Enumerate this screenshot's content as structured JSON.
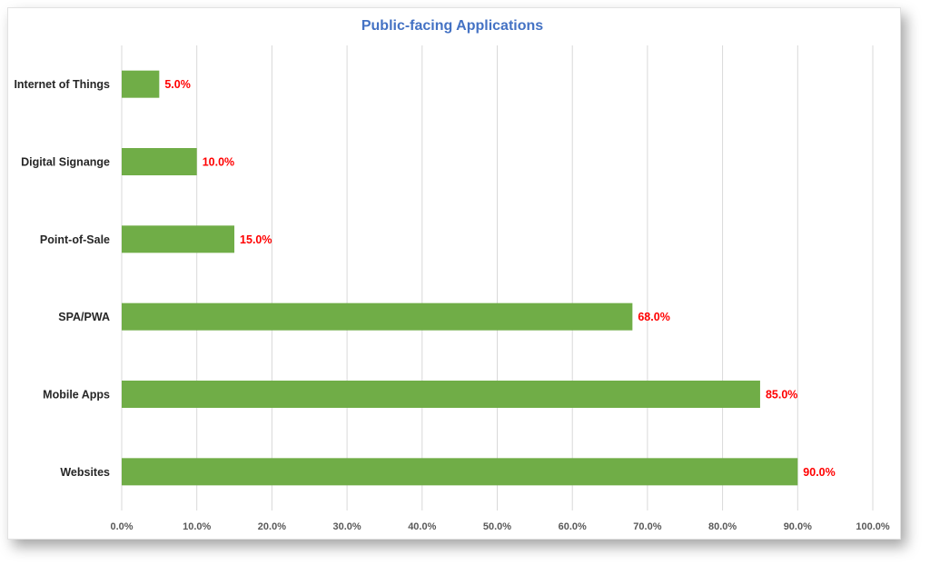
{
  "chart_data": {
    "type": "bar",
    "orientation": "horizontal",
    "title": "Public-facing Applications",
    "categories": [
      "Internet of Things",
      "Digital Signange",
      "Point-of-Sale",
      "SPA/PWA",
      "Mobile Apps",
      "Websites"
    ],
    "values": [
      5.0,
      10.0,
      15.0,
      68.0,
      85.0,
      90.0
    ],
    "data_labels": [
      "5.0%",
      "10.0%",
      "15.0%",
      "68.0%",
      "85.0%",
      "90.0%"
    ],
    "xlim": [
      0,
      100
    ],
    "x_ticks": [
      "0.0%",
      "10.0%",
      "20.0%",
      "30.0%",
      "40.0%",
      "50.0%",
      "60.0%",
      "70.0%",
      "80.0%",
      "90.0%",
      "100.0%"
    ],
    "grid": "vertical",
    "legend": "none",
    "colors": {
      "bar": "#70ad47",
      "data_label": "#ff0000",
      "title": "#4472c4"
    }
  }
}
